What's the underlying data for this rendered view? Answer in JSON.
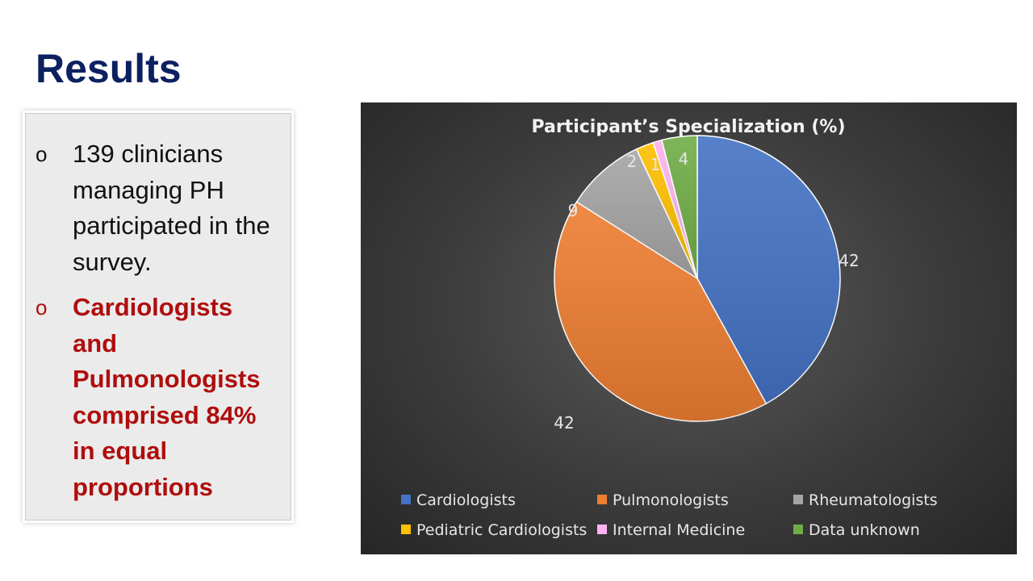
{
  "slide": {
    "title": "Results",
    "bullets": [
      {
        "marker": "o",
        "text": "139 clinicians managing PH participated in the survey."
      },
      {
        "marker": "o",
        "text": "Cardiologists and Pulmonologists comprised 84% in equal proportions"
      }
    ]
  },
  "chart_data": {
    "type": "pie",
    "title": "Participant’s Specialization (%)",
    "legend_position": "bottom",
    "categories": [
      "Cardiologists",
      "Pulmonologists",
      "Rheumatologists",
      "Pediatric Cardiologists",
      "Internal Medicine",
      "Data unknown"
    ],
    "values": [
      42,
      42,
      9,
      2,
      1,
      4
    ],
    "colors": [
      "#4472c4",
      "#ed7d31",
      "#a5a5a5",
      "#ffc000",
      "#ffb3f0",
      "#70ad47"
    ]
  },
  "colors": {
    "title": "#0d2060",
    "highlight_text": "#b00d0d"
  }
}
